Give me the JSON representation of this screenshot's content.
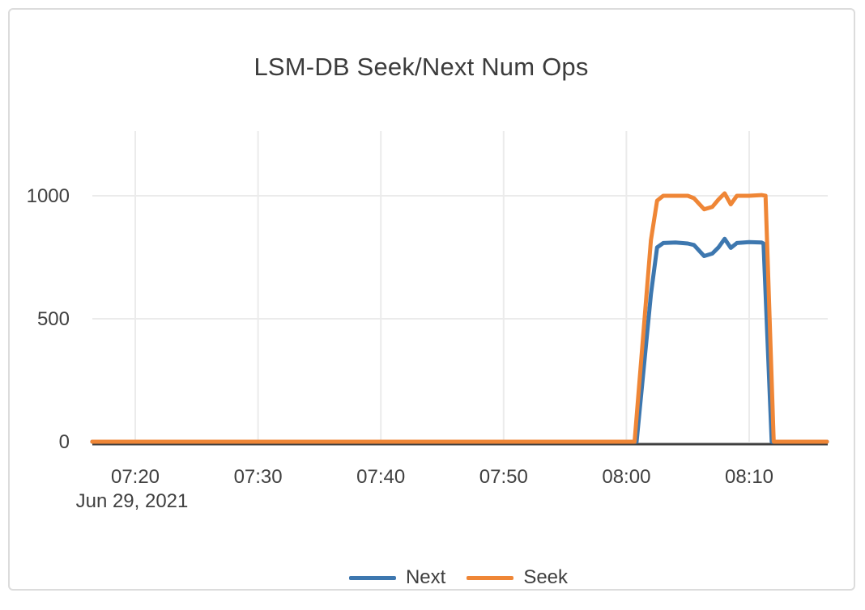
{
  "window": {
    "background": "#ffffff",
    "card_border_color": "#dcdcdc"
  },
  "chart_data": {
    "type": "line",
    "title": "LSM-DB Seek/Next Num Ops",
    "legend_position": "bottom-center",
    "grid": true,
    "x_axis": {
      "kind": "time",
      "date_label": "Jun 29, 2021",
      "tick_labels": [
        "07:20",
        "07:30",
        "07:40",
        "07:50",
        "08:00",
        "08:10"
      ],
      "range": [
        "07:16:30",
        "08:16:20"
      ]
    },
    "y_axis": {
      "tick_labels": [
        "0",
        "500",
        "1000"
      ],
      "tick_values": [
        0,
        500,
        1000
      ],
      "range": [
        0,
        1260
      ]
    },
    "colors": {
      "grid": "#ebebeb",
      "zero_line": "#3f3f3f",
      "text": "#404040"
    },
    "series": [
      {
        "name": "Next",
        "color": "#3d77af",
        "points": [
          [
            "07:16:30",
            0
          ],
          [
            "07:20:00",
            0
          ],
          [
            "07:30:00",
            0
          ],
          [
            "07:40:00",
            0
          ],
          [
            "07:50:00",
            0
          ],
          [
            "08:00:00",
            0
          ],
          [
            "08:00:50",
            0
          ],
          [
            "08:02:00",
            600
          ],
          [
            "08:02:30",
            790
          ],
          [
            "08:03:00",
            808
          ],
          [
            "08:04:00",
            810
          ],
          [
            "08:05:00",
            806
          ],
          [
            "08:05:30",
            800
          ],
          [
            "08:06:20",
            755
          ],
          [
            "08:07:00",
            765
          ],
          [
            "08:07:30",
            790
          ],
          [
            "08:08:00",
            825
          ],
          [
            "08:08:30",
            788
          ],
          [
            "08:09:00",
            808
          ],
          [
            "08:10:00",
            812
          ],
          [
            "08:11:00",
            810
          ],
          [
            "08:11:10",
            806
          ],
          [
            "08:11:50",
            0
          ],
          [
            "08:16:20",
            0
          ]
        ]
      },
      {
        "name": "Seek",
        "color": "#ef8636",
        "points": [
          [
            "07:16:30",
            0
          ],
          [
            "07:20:00",
            0
          ],
          [
            "07:30:00",
            0
          ],
          [
            "07:40:00",
            0
          ],
          [
            "07:50:00",
            0
          ],
          [
            "08:00:00",
            0
          ],
          [
            "08:00:40",
            0
          ],
          [
            "08:02:00",
            820
          ],
          [
            "08:02:30",
            980
          ],
          [
            "08:03:00",
            1000
          ],
          [
            "08:04:00",
            1000
          ],
          [
            "08:05:00",
            1000
          ],
          [
            "08:05:30",
            990
          ],
          [
            "08:06:20",
            945
          ],
          [
            "08:07:00",
            955
          ],
          [
            "08:07:30",
            985
          ],
          [
            "08:08:00",
            1010
          ],
          [
            "08:08:30",
            965
          ],
          [
            "08:09:00",
            1000
          ],
          [
            "08:10:00",
            1000
          ],
          [
            "08:11:00",
            1003
          ],
          [
            "08:11:20",
            1000
          ],
          [
            "08:12:00",
            0
          ],
          [
            "08:16:20",
            0
          ]
        ]
      }
    ]
  }
}
